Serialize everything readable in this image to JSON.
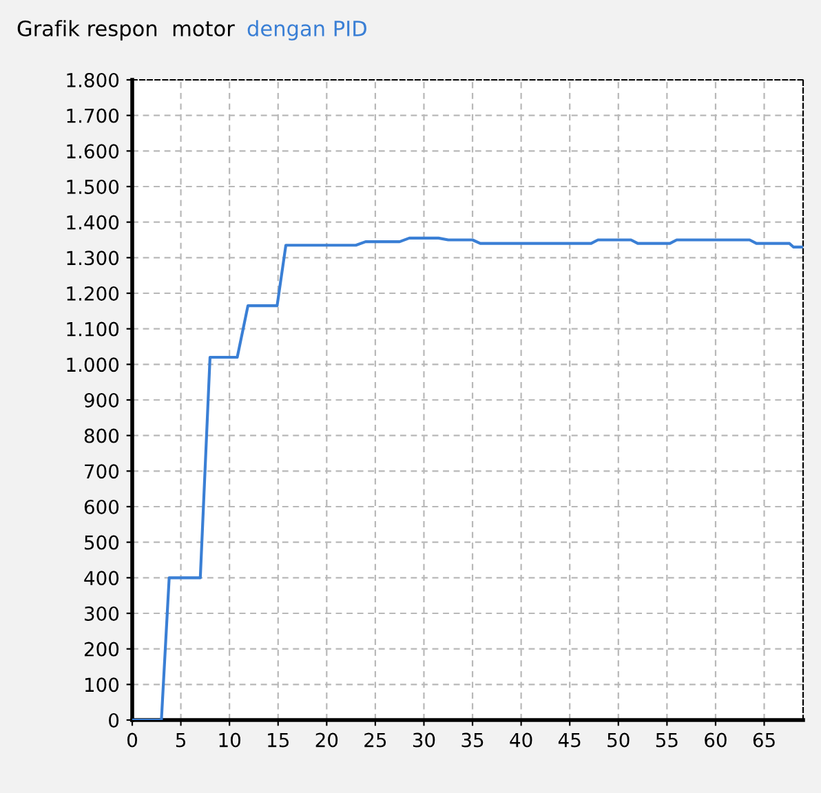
{
  "chart_data": {
    "type": "line",
    "title": "Grafik respon  motor",
    "legend": "top left",
    "x": [
      0,
      3,
      3.8,
      7,
      8,
      10.8,
      11.9,
      14.9,
      15.8,
      23,
      24,
      27.5,
      28.5,
      31.5,
      32.5,
      35,
      35.8,
      47.2,
      47.9,
      51.3,
      52,
      55.3,
      56,
      63.5,
      64.2,
      67.6,
      68,
      69
    ],
    "series": [
      {
        "name": "dengan PID",
        "color": "#3a7fd5",
        "values": [
          0,
          0,
          400,
          400,
          1020,
          1020,
          1165,
          1165,
          1335,
          1335,
          1345,
          1345,
          1355,
          1355,
          1350,
          1350,
          1340,
          1340,
          1350,
          1350,
          1340,
          1340,
          1350,
          1350,
          1340,
          1340,
          1330,
          1330
        ]
      }
    ],
    "xlim": [
      0,
      69
    ],
    "xticks": [
      0,
      5,
      10,
      15,
      20,
      25,
      30,
      35,
      40,
      45,
      50,
      55,
      60,
      65
    ],
    "ylim": [
      0,
      1800
    ],
    "yticks": [
      {
        "value": 0,
        "label": "0"
      },
      {
        "value": 100,
        "label": "100"
      },
      {
        "value": 200,
        "label": "200"
      },
      {
        "value": 300,
        "label": "300"
      },
      {
        "value": 400,
        "label": "400"
      },
      {
        "value": 500,
        "label": "500"
      },
      {
        "value": 600,
        "label": "600"
      },
      {
        "value": 700,
        "label": "700"
      },
      {
        "value": 800,
        "label": "800"
      },
      {
        "value": 900,
        "label": "900"
      },
      {
        "value": 1000,
        "label": "1.000"
      },
      {
        "value": 1100,
        "label": "1.100"
      },
      {
        "value": 1200,
        "label": "1.200"
      },
      {
        "value": 1300,
        "label": "1.300"
      },
      {
        "value": 1400,
        "label": "1.400"
      },
      {
        "value": 1500,
        "label": "1.500"
      },
      {
        "value": 1600,
        "label": "1.600"
      },
      {
        "value": 1700,
        "label": "1.700"
      },
      {
        "value": 1800,
        "label": "1.800"
      }
    ],
    "grid": true,
    "line_style": "solid",
    "marker": "none"
  }
}
